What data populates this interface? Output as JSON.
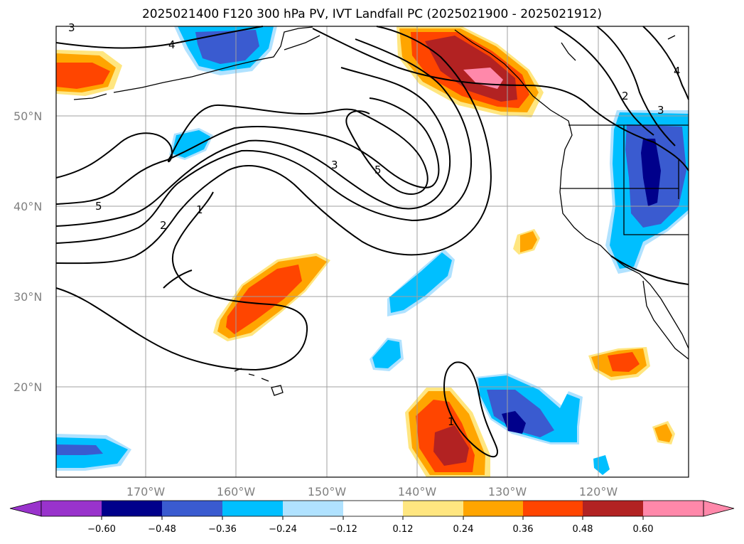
{
  "title": "2025021400 F120 300 hPa PV, IVT Landfall PC (2025021900 - 2025021912)",
  "lat_labels": [
    "50°N",
    "40°N",
    "30°N",
    "20°N"
  ],
  "lon_labels": [
    "170°W",
    "160°W",
    "150°W",
    "140°W",
    "130°W",
    "120°W"
  ],
  "colorbar": {
    "ticks": [
      "−0.60",
      "−0.48",
      "−0.36",
      "−0.24",
      "−0.12",
      "0.12",
      "0.24",
      "0.36",
      "0.48",
      "0.60"
    ],
    "colors": [
      "#9933cc",
      "#00008b",
      "#3a5bd0",
      "#00bfff",
      "#b0e2ff",
      "#ffffff",
      "#ffe680",
      "#ffa500",
      "#ff4500",
      "#b22222",
      "#ff88aa"
    ]
  },
  "contour_labels": [
    "5",
    "2",
    "1",
    "3",
    "5",
    "4",
    "3",
    "2",
    "3",
    "4",
    "1"
  ],
  "map": {
    "region": "North Pacific / Western North America",
    "lat_range": [
      10,
      60
    ],
    "lon_range": [
      -180,
      -110
    ],
    "gridlines": true,
    "field": "300 hPa PV",
    "shading": "IVT Landfall PC"
  }
}
